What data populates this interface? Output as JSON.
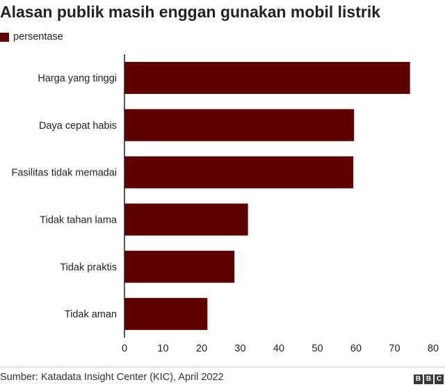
{
  "chart_data": {
    "type": "bar",
    "orientation": "horizontal",
    "title": "Alasan publik masih enggan gunakan mobil listrik",
    "categories": [
      "Harga yang tinggi",
      "Daya cepat habis",
      "Fasilitas tidak memadai",
      "Tidak tahan lama",
      "Tidak praktis",
      "Tidak aman"
    ],
    "series": [
      {
        "name": "persentase",
        "values": [
          74,
          59.5,
          59.3,
          32,
          28.5,
          21.5
        ]
      }
    ],
    "xlim": [
      0,
      80
    ],
    "xticks": [
      "0",
      "10",
      "20",
      "30",
      "40",
      "50",
      "60",
      "70",
      "80"
    ],
    "grid": false,
    "legend_position": "top-left",
    "bar_color": "#5e0000"
  },
  "footer": {
    "source": "Sumber: Katadata Insight Center (KIC), April 2022",
    "logo_letters": [
      "B",
      "B",
      "C"
    ]
  }
}
